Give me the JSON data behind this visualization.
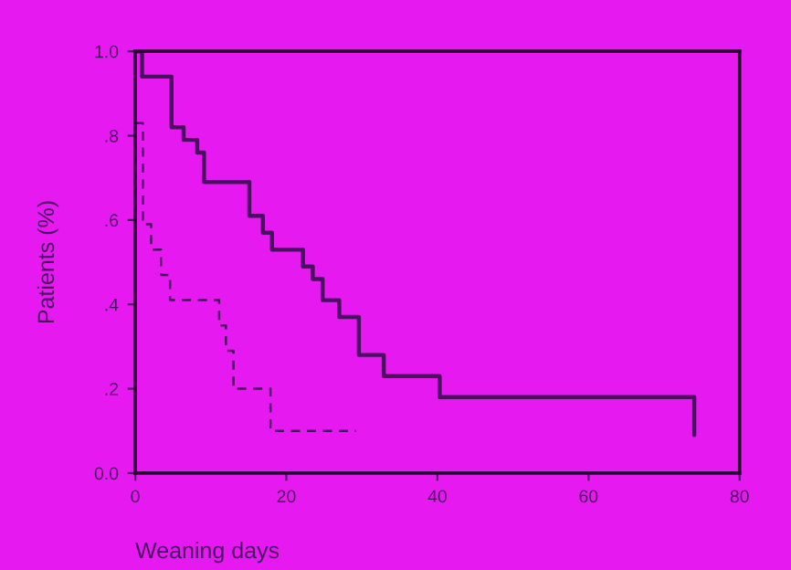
{
  "chart_data": {
    "type": "step",
    "xlabel": "Weaning days",
    "ylabel": "Patients (%)",
    "xlim": [
      0,
      80
    ],
    "ylim": [
      0,
      1.0
    ],
    "xticks": [
      0,
      20,
      40,
      60,
      80
    ],
    "yticks": [
      {
        "value": 0,
        "label": "0.0"
      },
      {
        "value": 0.2,
        "label": ".2"
      },
      {
        "value": 0.4,
        "label": ".4"
      },
      {
        "value": 0.6,
        "label": ".6"
      },
      {
        "value": 0.8,
        "label": ".8"
      },
      {
        "value": 1.0,
        "label": "1.0"
      }
    ],
    "grid": false,
    "legend": false,
    "marker": "none",
    "series": [
      {
        "color": "#4a1060",
        "line_style": "solid",
        "x": [
          0,
          0.9,
          4.8,
          6.4,
          8.2,
          9.1,
          15.1,
          16.9,
          18.1,
          22.2,
          23.5,
          24.8,
          27,
          29.6,
          32.9,
          40.3,
          74
        ],
        "values": [
          1.0,
          0.94,
          0.82,
          0.79,
          0.76,
          0.69,
          0.61,
          0.57,
          0.53,
          0.49,
          0.46,
          0.41,
          0.37,
          0.28,
          0.23,
          0.18,
          0.09
        ]
      },
      {
        "color": "#4a1060",
        "line_style": "dashed",
        "x": [
          0,
          1,
          2.1,
          3.4,
          4.6,
          11.1,
          12,
          13,
          17.9,
          29.2
        ],
        "values": [
          0.83,
          0.59,
          0.53,
          0.47,
          0.41,
          0.35,
          0.29,
          0.2,
          0.1,
          0.1
        ]
      }
    ]
  }
}
